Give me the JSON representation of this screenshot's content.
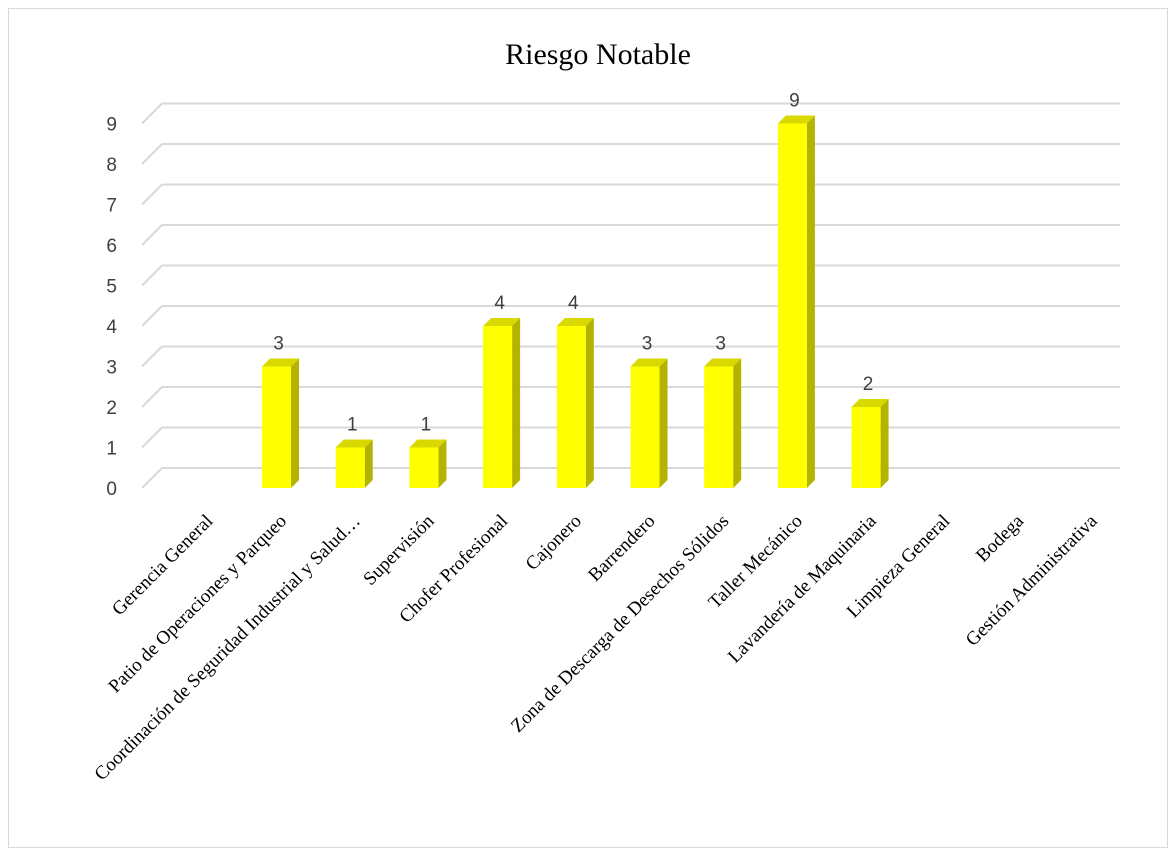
{
  "chart_data": {
    "type": "bar",
    "title": "Riesgo Notable",
    "categories": [
      "Gerencia General",
      "Patio de Operaciones y Parqueo",
      "Coordinación de Seguridad Industrial y Salud…",
      "Supervisión",
      "Chofer Profesional",
      "Cajonero",
      "Barrendero",
      "Zona de Descarga de Desechos Sólidos",
      "Taller Mecánico",
      "Lavandería de Maquinaria",
      "Limpieza General",
      "Bodega",
      "Gestión Administrativa"
    ],
    "values": [
      0,
      3,
      1,
      1,
      4,
      4,
      3,
      3,
      9,
      2,
      0,
      0,
      0
    ],
    "data_labels": [
      "",
      "3",
      "1",
      "1",
      "4",
      "4",
      "3",
      "3",
      "9",
      "2",
      "",
      "",
      ""
    ],
    "ylim": [
      0,
      9
    ],
    "yticks": [
      "0",
      "1",
      "2",
      "3",
      "4",
      "5",
      "6",
      "7",
      "8",
      "9"
    ],
    "grid": true,
    "legend": "none",
    "style": "3d-column"
  },
  "colors": {
    "bar_front": "#ffff00",
    "bar_side": "#b3b300",
    "bar_top": "#d9d900",
    "gridline": "#d9d9d9"
  }
}
